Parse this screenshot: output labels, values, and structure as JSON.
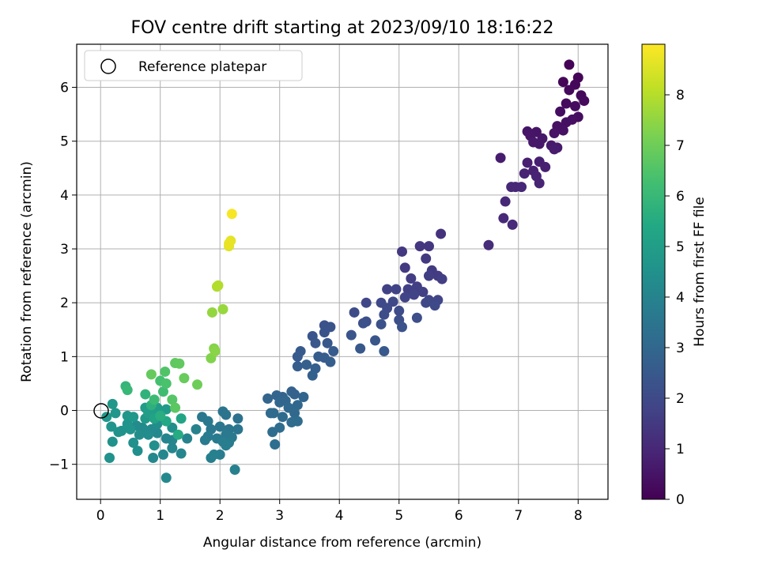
{
  "chart_data": {
    "type": "scatter",
    "title": "FOV centre drift starting at 2023/09/10 18:16:22",
    "xlabel": "Angular distance from reference (arcmin)",
    "ylabel": "Rotation from reference (arcmin)",
    "xlim": [
      -0.4,
      8.5
    ],
    "ylim": [
      -1.65,
      6.8
    ],
    "x_ticks": [
      "0",
      "1",
      "2",
      "3",
      "4",
      "5",
      "6",
      "7",
      "8"
    ],
    "y_ticks": [
      "−1",
      "0",
      "1",
      "2",
      "3",
      "4",
      "5",
      "6"
    ],
    "grid": true,
    "legend": {
      "placement": "top-left",
      "entries": [
        "Reference platepar"
      ]
    },
    "reference_point": {
      "x": 0,
      "y": 0,
      "name": "Reference platepar"
    },
    "colorbar": {
      "label": "Hours from first FF file",
      "range": [
        0,
        9
      ],
      "ticks": [
        "0",
        "1",
        "2",
        "3",
        "4",
        "5",
        "6",
        "7",
        "8"
      ],
      "colormap": "viridis"
    },
    "points": [
      {
        "x": 7.85,
        "y": 6.42,
        "h": 0.05
      },
      {
        "x": 8.0,
        "y": 6.18,
        "h": 0.1
      },
      {
        "x": 7.75,
        "y": 6.1,
        "h": 0.12
      },
      {
        "x": 7.95,
        "y": 6.05,
        "h": 0.15
      },
      {
        "x": 7.85,
        "y": 5.95,
        "h": 0.18
      },
      {
        "x": 8.05,
        "y": 5.85,
        "h": 0.2
      },
      {
        "x": 8.1,
        "y": 5.75,
        "h": 0.22
      },
      {
        "x": 7.8,
        "y": 5.7,
        "h": 0.25
      },
      {
        "x": 7.95,
        "y": 5.65,
        "h": 0.28
      },
      {
        "x": 7.7,
        "y": 5.55,
        "h": 0.3
      },
      {
        "x": 8.0,
        "y": 5.45,
        "h": 0.32
      },
      {
        "x": 7.9,
        "y": 5.4,
        "h": 0.35
      },
      {
        "x": 7.8,
        "y": 5.35,
        "h": 0.38
      },
      {
        "x": 7.65,
        "y": 5.28,
        "h": 0.4
      },
      {
        "x": 7.75,
        "y": 5.2,
        "h": 0.42
      },
      {
        "x": 7.6,
        "y": 5.15,
        "h": 0.45
      },
      {
        "x": 7.15,
        "y": 5.18,
        "h": 0.48
      },
      {
        "x": 7.3,
        "y": 5.17,
        "h": 0.5
      },
      {
        "x": 7.2,
        "y": 5.1,
        "h": 0.52
      },
      {
        "x": 7.4,
        "y": 5.05,
        "h": 0.55
      },
      {
        "x": 7.35,
        "y": 4.95,
        "h": 0.58
      },
      {
        "x": 7.25,
        "y": 4.98,
        "h": 0.6
      },
      {
        "x": 7.55,
        "y": 4.92,
        "h": 0.62
      },
      {
        "x": 7.65,
        "y": 4.88,
        "h": 0.65
      },
      {
        "x": 7.6,
        "y": 4.85,
        "h": 0.68
      },
      {
        "x": 6.7,
        "y": 4.69,
        "h": 0.7
      },
      {
        "x": 7.15,
        "y": 4.6,
        "h": 0.75
      },
      {
        "x": 7.35,
        "y": 4.62,
        "h": 0.78
      },
      {
        "x": 7.45,
        "y": 4.52,
        "h": 0.8
      },
      {
        "x": 7.25,
        "y": 4.45,
        "h": 0.82
      },
      {
        "x": 7.1,
        "y": 4.4,
        "h": 0.85
      },
      {
        "x": 7.3,
        "y": 4.35,
        "h": 0.88
      },
      {
        "x": 7.35,
        "y": 4.22,
        "h": 0.9
      },
      {
        "x": 6.95,
        "y": 4.15,
        "h": 0.95
      },
      {
        "x": 7.05,
        "y": 4.15,
        "h": 0.98
      },
      {
        "x": 6.88,
        "y": 4.15,
        "h": 1.0
      },
      {
        "x": 6.78,
        "y": 3.88,
        "h": 1.02
      },
      {
        "x": 6.75,
        "y": 3.57,
        "h": 1.05
      },
      {
        "x": 6.9,
        "y": 3.45,
        "h": 1.08
      },
      {
        "x": 6.5,
        "y": 3.07,
        "h": 1.12
      },
      {
        "x": 5.7,
        "y": 3.28,
        "h": 1.3
      },
      {
        "x": 5.35,
        "y": 3.05,
        "h": 1.4
      },
      {
        "x": 5.5,
        "y": 3.05,
        "h": 1.42
      },
      {
        "x": 5.05,
        "y": 2.95,
        "h": 1.45
      },
      {
        "x": 5.45,
        "y": 2.82,
        "h": 1.5
      },
      {
        "x": 5.1,
        "y": 2.65,
        "h": 1.52
      },
      {
        "x": 5.55,
        "y": 2.6,
        "h": 1.55
      },
      {
        "x": 5.65,
        "y": 2.5,
        "h": 1.58
      },
      {
        "x": 5.2,
        "y": 2.45,
        "h": 1.6
      },
      {
        "x": 5.5,
        "y": 2.5,
        "h": 1.62
      },
      {
        "x": 5.72,
        "y": 2.44,
        "h": 1.65
      },
      {
        "x": 5.3,
        "y": 2.3,
        "h": 1.68
      },
      {
        "x": 5.15,
        "y": 2.25,
        "h": 1.7
      },
      {
        "x": 5.4,
        "y": 2.2,
        "h": 1.72
      },
      {
        "x": 4.8,
        "y": 2.25,
        "h": 1.75
      },
      {
        "x": 4.95,
        "y": 2.25,
        "h": 1.78
      },
      {
        "x": 5.25,
        "y": 2.15,
        "h": 1.8
      },
      {
        "x": 5.1,
        "y": 2.1,
        "h": 1.82
      },
      {
        "x": 5.5,
        "y": 2.05,
        "h": 1.85
      },
      {
        "x": 5.65,
        "y": 2.05,
        "h": 1.88
      },
      {
        "x": 4.45,
        "y": 2.0,
        "h": 1.9
      },
      {
        "x": 4.7,
        "y": 2.0,
        "h": 1.92
      },
      {
        "x": 4.9,
        "y": 2.02,
        "h": 1.95
      },
      {
        "x": 5.45,
        "y": 2.0,
        "h": 1.98
      },
      {
        "x": 5.6,
        "y": 1.95,
        "h": 2.0
      },
      {
        "x": 4.8,
        "y": 1.9,
        "h": 2.02
      },
      {
        "x": 5.0,
        "y": 1.85,
        "h": 2.05
      },
      {
        "x": 4.25,
        "y": 1.82,
        "h": 2.08
      },
      {
        "x": 4.75,
        "y": 1.78,
        "h": 2.1
      },
      {
        "x": 5.3,
        "y": 1.72,
        "h": 2.12
      },
      {
        "x": 5.0,
        "y": 1.68,
        "h": 2.15
      },
      {
        "x": 4.45,
        "y": 1.65,
        "h": 2.18
      },
      {
        "x": 4.4,
        "y": 1.62,
        "h": 2.2
      },
      {
        "x": 4.7,
        "y": 1.6,
        "h": 2.22
      },
      {
        "x": 5.05,
        "y": 1.55,
        "h": 2.25
      },
      {
        "x": 3.75,
        "y": 1.58,
        "h": 2.28
      },
      {
        "x": 3.85,
        "y": 1.55,
        "h": 2.3
      },
      {
        "x": 3.75,
        "y": 1.45,
        "h": 2.32
      },
      {
        "x": 4.2,
        "y": 1.4,
        "h": 2.35
      },
      {
        "x": 3.55,
        "y": 1.38,
        "h": 2.38
      },
      {
        "x": 4.6,
        "y": 1.3,
        "h": 2.4
      },
      {
        "x": 3.6,
        "y": 1.25,
        "h": 2.42
      },
      {
        "x": 3.8,
        "y": 1.25,
        "h": 2.45
      },
      {
        "x": 4.35,
        "y": 1.15,
        "h": 2.48
      },
      {
        "x": 4.75,
        "y": 1.1,
        "h": 2.5
      },
      {
        "x": 3.35,
        "y": 1.1,
        "h": 2.52
      },
      {
        "x": 3.9,
        "y": 1.1,
        "h": 2.55
      },
      {
        "x": 3.3,
        "y": 1.0,
        "h": 2.58
      },
      {
        "x": 3.65,
        "y": 1.0,
        "h": 2.6
      },
      {
        "x": 3.75,
        "y": 0.98,
        "h": 2.62
      },
      {
        "x": 3.85,
        "y": 0.9,
        "h": 2.65
      },
      {
        "x": 3.3,
        "y": 0.82,
        "h": 2.68
      },
      {
        "x": 3.6,
        "y": 0.78,
        "h": 2.7
      },
      {
        "x": 3.45,
        "y": 0.85,
        "h": 2.72
      },
      {
        "x": 3.55,
        "y": 0.65,
        "h": 2.75
      },
      {
        "x": 3.2,
        "y": 0.35,
        "h": 2.8
      },
      {
        "x": 3.25,
        "y": 0.3,
        "h": 2.82
      },
      {
        "x": 3.05,
        "y": 0.25,
        "h": 2.85
      },
      {
        "x": 2.95,
        "y": 0.28,
        "h": 2.88
      },
      {
        "x": 2.8,
        "y": 0.22,
        "h": 2.9
      },
      {
        "x": 3.4,
        "y": 0.25,
        "h": 2.92
      },
      {
        "x": 3.1,
        "y": 0.18,
        "h": 2.95
      },
      {
        "x": 3.0,
        "y": 0.15,
        "h": 2.98
      },
      {
        "x": 3.3,
        "y": 0.1,
        "h": 3.0
      },
      {
        "x": 3.15,
        "y": 0.05,
        "h": 3.02
      },
      {
        "x": 3.25,
        "y": -0.05,
        "h": 3.05
      },
      {
        "x": 2.85,
        "y": -0.05,
        "h": 3.08
      },
      {
        "x": 2.9,
        "y": -0.05,
        "h": 3.1
      },
      {
        "x": 3.05,
        "y": -0.12,
        "h": 3.12
      },
      {
        "x": 3.3,
        "y": -0.2,
        "h": 3.15
      },
      {
        "x": 3.2,
        "y": -0.22,
        "h": 3.18
      },
      {
        "x": 3.0,
        "y": -0.32,
        "h": 3.2
      },
      {
        "x": 2.88,
        "y": -0.4,
        "h": 3.22
      },
      {
        "x": 2.92,
        "y": -0.63,
        "h": 3.25
      },
      {
        "x": 2.3,
        "y": -0.15,
        "h": 3.4
      },
      {
        "x": 2.1,
        "y": -0.08,
        "h": 3.42
      },
      {
        "x": 2.05,
        "y": -0.02,
        "h": 3.45
      },
      {
        "x": 2.15,
        "y": -0.35,
        "h": 3.48
      },
      {
        "x": 2.3,
        "y": -0.35,
        "h": 3.5
      },
      {
        "x": 2.0,
        "y": -0.3,
        "h": 3.52
      },
      {
        "x": 1.85,
        "y": -0.35,
        "h": 3.55
      },
      {
        "x": 1.7,
        "y": -0.12,
        "h": 3.58
      },
      {
        "x": 1.8,
        "y": -0.2,
        "h": 3.6
      },
      {
        "x": 2.1,
        "y": -0.45,
        "h": 3.62
      },
      {
        "x": 2.2,
        "y": -0.5,
        "h": 3.65
      },
      {
        "x": 1.95,
        "y": -0.52,
        "h": 3.68
      },
      {
        "x": 1.8,
        "y": -0.48,
        "h": 3.7
      },
      {
        "x": 1.75,
        "y": -0.55,
        "h": 3.72
      },
      {
        "x": 2.15,
        "y": -0.6,
        "h": 3.75
      },
      {
        "x": 2.05,
        "y": -0.58,
        "h": 3.78
      },
      {
        "x": 2.1,
        "y": -0.65,
        "h": 3.8
      },
      {
        "x": 2.0,
        "y": -0.82,
        "h": 3.82
      },
      {
        "x": 1.85,
        "y": -0.88,
        "h": 3.85
      },
      {
        "x": 1.9,
        "y": -0.82,
        "h": 3.88
      },
      {
        "x": 2.25,
        "y": -1.1,
        "h": 3.9
      },
      {
        "x": 1.6,
        "y": -0.35,
        "h": 3.95
      },
      {
        "x": 1.45,
        "y": -0.52,
        "h": 4.0
      },
      {
        "x": 1.2,
        "y": -0.55,
        "h": 4.05
      },
      {
        "x": 1.1,
        "y": -0.52,
        "h": 4.08
      },
      {
        "x": 1.2,
        "y": -0.7,
        "h": 4.1
      },
      {
        "x": 1.35,
        "y": -0.8,
        "h": 4.12
      },
      {
        "x": 1.05,
        "y": -0.82,
        "h": 4.15
      },
      {
        "x": 0.88,
        "y": -0.88,
        "h": 4.18
      },
      {
        "x": 1.1,
        "y": -1.25,
        "h": 4.2
      },
      {
        "x": 0.95,
        "y": -0.42,
        "h": 4.22
      },
      {
        "x": 0.85,
        "y": -0.35,
        "h": 4.25
      },
      {
        "x": 0.6,
        "y": -0.28,
        "h": 4.28
      },
      {
        "x": 0.7,
        "y": -0.32,
        "h": 4.3
      },
      {
        "x": 0.8,
        "y": -0.45,
        "h": 4.32
      },
      {
        "x": 0.65,
        "y": -0.45,
        "h": 4.35
      },
      {
        "x": 1.2,
        "y": -0.32,
        "h": 4.38
      },
      {
        "x": 0.95,
        "y": -0.25,
        "h": 4.4
      },
      {
        "x": 0.9,
        "y": -0.65,
        "h": 4.42
      },
      {
        "x": 0.55,
        "y": -0.6,
        "h": 4.45
      },
      {
        "x": 0.62,
        "y": -0.75,
        "h": 4.48
      },
      {
        "x": 0.2,
        "y": -0.58,
        "h": 4.5
      },
      {
        "x": 0.15,
        "y": -0.88,
        "h": 4.52
      },
      {
        "x": 0.35,
        "y": -0.38,
        "h": 4.55
      },
      {
        "x": 0.3,
        "y": -0.4,
        "h": 4.58
      },
      {
        "x": 0.5,
        "y": -0.35,
        "h": 4.6
      },
      {
        "x": 0.45,
        "y": -0.25,
        "h": 4.62
      },
      {
        "x": 0.18,
        "y": -0.3,
        "h": 4.65
      },
      {
        "x": 0.1,
        "y": -0.12,
        "h": 4.68
      },
      {
        "x": 0.25,
        "y": -0.05,
        "h": 4.7
      },
      {
        "x": 0.2,
        "y": 0.12,
        "h": 4.72
      },
      {
        "x": 0.45,
        "y": -0.1,
        "h": 4.75
      },
      {
        "x": 0.55,
        "y": -0.12,
        "h": 4.78
      },
      {
        "x": 0.75,
        "y": -0.15,
        "h": 4.8
      },
      {
        "x": 0.85,
        "y": -0.1,
        "h": 4.82
      },
      {
        "x": 1.0,
        "y": -0.02,
        "h": 4.85
      },
      {
        "x": 1.1,
        "y": 0.02,
        "h": 4.88
      },
      {
        "x": 0.95,
        "y": 0.05,
        "h": 4.9
      },
      {
        "x": 0.75,
        "y": 0.05,
        "h": 4.92
      },
      {
        "x": 0.85,
        "y": 0.0,
        "h": 4.95
      },
      {
        "x": 0.8,
        "y": -0.05,
        "h": 5.0
      },
      {
        "x": 1.0,
        "y": -0.08,
        "h": 5.1
      },
      {
        "x": 0.9,
        "y": -0.15,
        "h": 5.2
      },
      {
        "x": 1.35,
        "y": -0.15,
        "h": 5.3
      },
      {
        "x": 1.1,
        "y": -0.2,
        "h": 5.4
      },
      {
        "x": 1.3,
        "y": -0.45,
        "h": 5.5
      },
      {
        "x": 1.0,
        "y": -0.1,
        "h": 5.6
      },
      {
        "x": 0.85,
        "y": 0.1,
        "h": 5.7
      },
      {
        "x": 0.75,
        "y": 0.3,
        "h": 5.8
      },
      {
        "x": 0.42,
        "y": 0.45,
        "h": 5.9
      },
      {
        "x": 0.45,
        "y": 0.38,
        "h": 6.0
      },
      {
        "x": 0.9,
        "y": 0.2,
        "h": 6.1
      },
      {
        "x": 1.05,
        "y": 0.35,
        "h": 6.2
      },
      {
        "x": 1.0,
        "y": 0.55,
        "h": 6.3
      },
      {
        "x": 1.1,
        "y": 0.5,
        "h": 6.4
      },
      {
        "x": 1.08,
        "y": 0.72,
        "h": 6.5
      },
      {
        "x": 1.2,
        "y": 0.2,
        "h": 6.6
      },
      {
        "x": 1.25,
        "y": 0.05,
        "h": 6.7
      },
      {
        "x": 1.25,
        "y": 0.88,
        "h": 6.75
      },
      {
        "x": 1.32,
        "y": 0.87,
        "h": 6.8
      },
      {
        "x": 0.85,
        "y": 0.67,
        "h": 6.85
      },
      {
        "x": 1.4,
        "y": 0.6,
        "h": 6.9
      },
      {
        "x": 1.62,
        "y": 0.48,
        "h": 7.0
      },
      {
        "x": 1.85,
        "y": 0.97,
        "h": 7.3
      },
      {
        "x": 1.9,
        "y": 1.15,
        "h": 7.35
      },
      {
        "x": 1.92,
        "y": 1.1,
        "h": 7.4
      },
      {
        "x": 1.87,
        "y": 1.82,
        "h": 7.55
      },
      {
        "x": 2.05,
        "y": 1.88,
        "h": 7.6
      },
      {
        "x": 1.95,
        "y": 2.3,
        "h": 7.9
      },
      {
        "x": 1.97,
        "y": 2.32,
        "h": 7.95
      },
      {
        "x": 2.15,
        "y": 3.05,
        "h": 8.6
      },
      {
        "x": 2.18,
        "y": 3.15,
        "h": 8.65
      },
      {
        "x": 2.15,
        "y": 3.1,
        "h": 8.7
      },
      {
        "x": 2.2,
        "y": 3.65,
        "h": 8.9
      }
    ]
  }
}
